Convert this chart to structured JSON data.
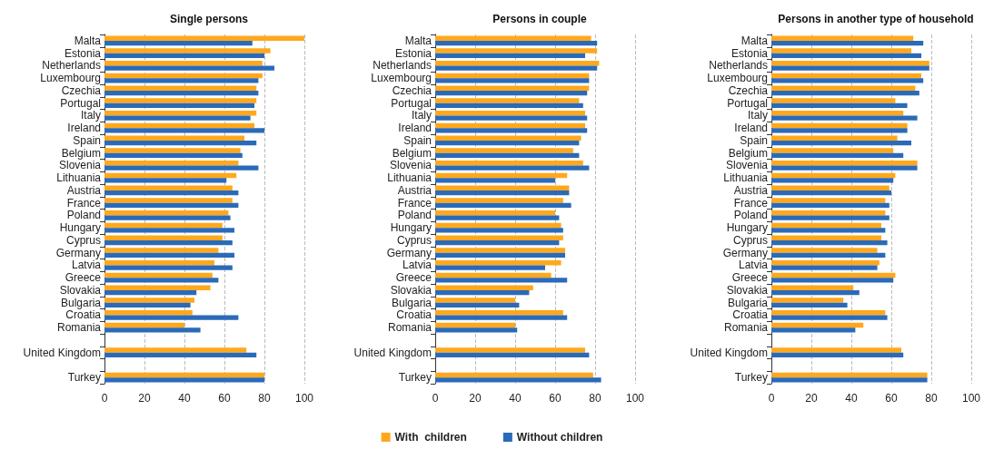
{
  "chart_data": [
    {
      "type": "bar",
      "orientation": "horizontal",
      "title": "Single persons",
      "categories": [
        "Malta",
        "Estonia",
        "Netherlands",
        "Luxembourg",
        "Czechia",
        "Portugal",
        "Italy",
        "Ireland",
        "Spain",
        "Belgium",
        "Slovenia",
        "Lithuania",
        "Austria",
        "France",
        "Poland",
        "Hungary",
        "Cyprus",
        "Germany",
        "Latvia",
        "Greece",
        "Slovakia",
        "Bulgaria",
        "Croatia",
        "Romania",
        null,
        "United Kingdom",
        null,
        "Turkey"
      ],
      "series": [
        {
          "color": "#ffa81c",
          "values": [
            100,
            83,
            79,
            79,
            76,
            76,
            76,
            75,
            70,
            68,
            67,
            66,
            64,
            64,
            62,
            59,
            59,
            57,
            55,
            54,
            53,
            45,
            44,
            40,
            null,
            71,
            null,
            80
          ]
        },
        {
          "color": "#2a6ab8",
          "values": [
            74,
            80,
            85,
            77,
            77,
            75,
            73,
            80,
            76,
            69,
            77,
            61,
            67,
            67,
            63,
            65,
            64,
            65,
            64,
            57,
            46,
            43,
            67,
            48,
            null,
            76,
            null,
            80
          ]
        }
      ],
      "xlim": [
        0,
        100
      ],
      "xticks": [
        0,
        20,
        40,
        60,
        80,
        100
      ],
      "grid": "x",
      "legend": false
    },
    {
      "type": "bar",
      "orientation": "horizontal",
      "title": "Persons in couple",
      "categories": [
        "Malta",
        "Estonia",
        "Netherlands",
        "Luxembourg",
        "Czechia",
        "Portugal",
        "Italy",
        "Ireland",
        "Spain",
        "Belgium",
        "Slovenia",
        "Lithuania",
        "Austria",
        "France",
        "Poland",
        "Hungary",
        "Cyprus",
        "Germany",
        "Latvia",
        "Greece",
        "Slovakia",
        "Bulgaria",
        "Croatia",
        "Romania",
        null,
        "United Kingdom",
        null,
        "Turkey"
      ],
      "series": [
        {
          "name": "With  children",
          "color": "#ffa81c",
          "values": [
            78,
            81,
            82,
            77,
            77,
            72,
            75,
            75,
            73,
            69,
            74,
            66,
            67,
            64,
            60,
            63,
            64,
            65,
            63,
            58,
            49,
            40,
            64,
            40,
            null,
            75,
            null,
            79
          ]
        },
        {
          "name": "Without children",
          "color": "#2a6ab8",
          "values": [
            81,
            75,
            81,
            77,
            76,
            74,
            76,
            76,
            72,
            72,
            77,
            60,
            67,
            68,
            62,
            64,
            62,
            65,
            55,
            66,
            47,
            42,
            66,
            41,
            null,
            77,
            null,
            83
          ]
        }
      ],
      "xlim": [
        0,
        100
      ],
      "xticks": [
        0,
        20,
        40,
        60,
        80,
        100
      ],
      "grid": "x",
      "legend": "bottom"
    },
    {
      "type": "bar",
      "orientation": "horizontal",
      "title": "Persons in another type of household",
      "categories": [
        "Malta",
        "Estonia",
        "Netherlands",
        "Luxembourg",
        "Czechia",
        "Portugal",
        "Italy",
        "Ireland",
        "Spain",
        "Belgium",
        "Slovenia",
        "Lithuania",
        "Austria",
        "France",
        "Poland",
        "Hungary",
        "Cyprus",
        "Germany",
        "Latvia",
        "Greece",
        "Slovakia",
        "Bulgaria",
        "Croatia",
        "Romania",
        null,
        "United Kingdom",
        null,
        "Turkey"
      ],
      "series": [
        {
          "color": "#ffa81c",
          "values": [
            71,
            70,
            79,
            75,
            72,
            62,
            66,
            68,
            63,
            61,
            73,
            62,
            59,
            57,
            57,
            55,
            55,
            53,
            54,
            62,
            41,
            36,
            57,
            46,
            null,
            65,
            null,
            78
          ]
        },
        {
          "color": "#2a6ab8",
          "values": [
            76,
            75,
            79,
            76,
            74,
            68,
            73,
            68,
            70,
            66,
            73,
            61,
            60,
            59,
            59,
            57,
            58,
            57,
            53,
            61,
            44,
            38,
            58,
            42,
            null,
            66,
            null,
            78
          ]
        }
      ],
      "xlim": [
        0,
        100
      ],
      "xticks": [
        0,
        20,
        40,
        60,
        80,
        100
      ],
      "grid": "x",
      "legend": false
    }
  ]
}
